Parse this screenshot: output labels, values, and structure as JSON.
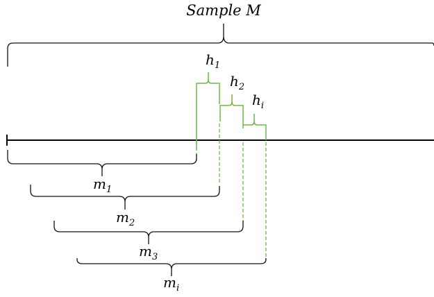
{
  "title": "Sample M",
  "labels": {
    "m1": {
      "base": "m",
      "sub": "1"
    },
    "m2": {
      "base": "m",
      "sub": "2"
    },
    "m3": {
      "base": "m",
      "sub": "3"
    },
    "mi": {
      "base": "m",
      "sub": "i"
    },
    "h1": {
      "base": "h",
      "sub": "1"
    },
    "h2": {
      "base": "h",
      "sub": "2"
    },
    "hi": {
      "base": "h",
      "sub": "i"
    }
  },
  "colors": {
    "black": "#111111",
    "green": "#70b84a"
  }
}
